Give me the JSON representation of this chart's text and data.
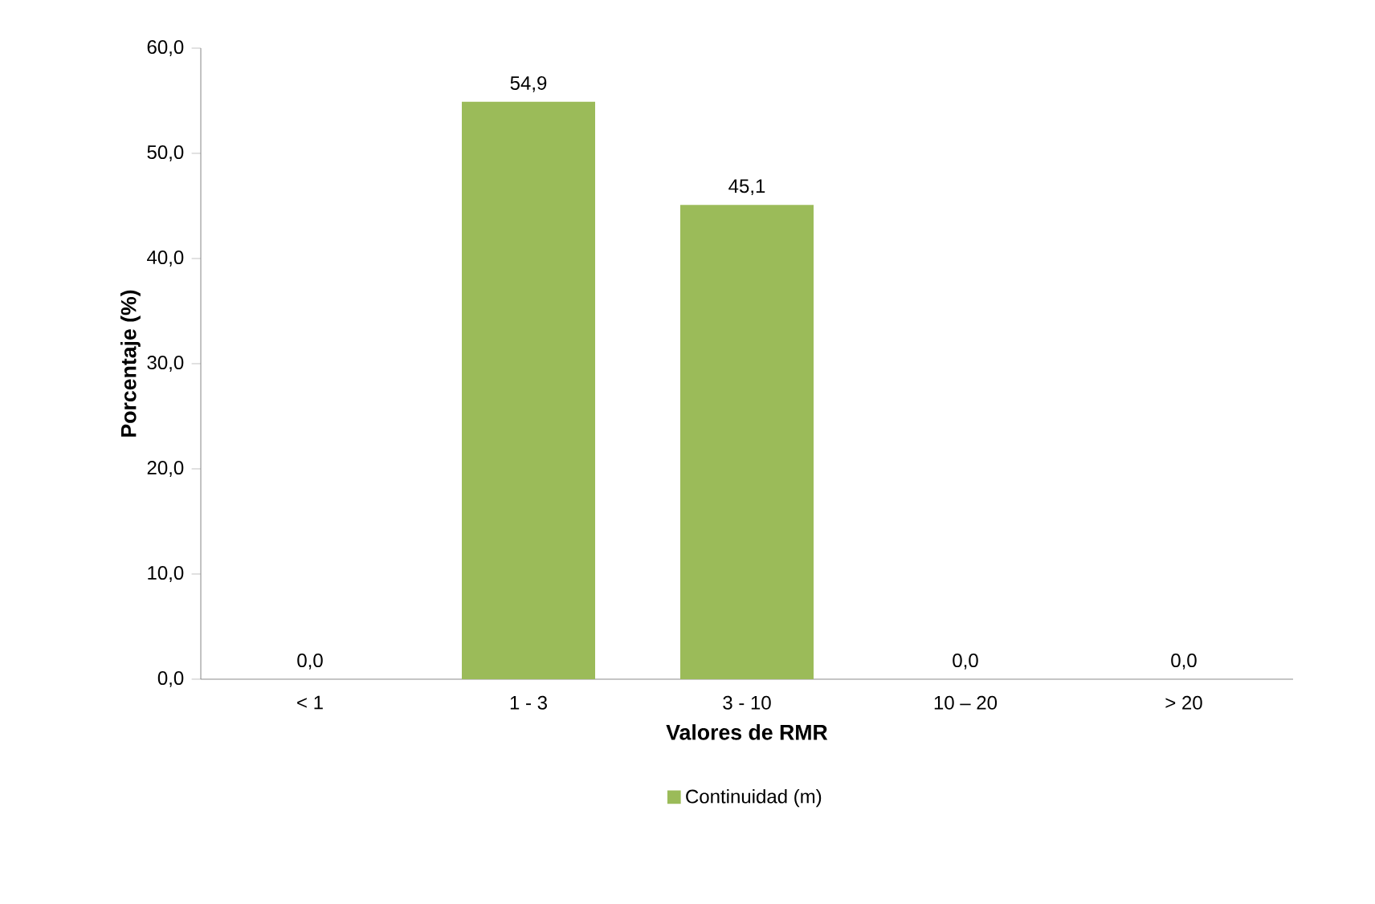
{
  "chart_data": {
    "type": "bar",
    "xlabel": "Valores de RMR",
    "ylabel": "Porcentaje (%)",
    "categories": [
      "< 1",
      "1 - 3",
      "3 - 10",
      "10 – 20",
      "> 20"
    ],
    "series": [
      {
        "name": "Continuidad (m)",
        "color": "#9bbb59",
        "values": [
          0,
          54.9,
          45.1,
          0,
          0
        ],
        "value_labels": [
          "0,0",
          "54,9",
          "45,1",
          "0,0",
          "0,0"
        ]
      }
    ],
    "ylim": [
      0,
      60
    ],
    "yticks": [
      {
        "value": 0,
        "label": "0,0"
      },
      {
        "value": 10,
        "label": "10,0"
      },
      {
        "value": 20,
        "label": "20,0"
      },
      {
        "value": 30,
        "label": "30,0"
      },
      {
        "value": 40,
        "label": "40,0"
      },
      {
        "value": 50,
        "label": "50,0"
      },
      {
        "value": 60,
        "label": "60,0"
      }
    ],
    "legend": "bottom"
  }
}
